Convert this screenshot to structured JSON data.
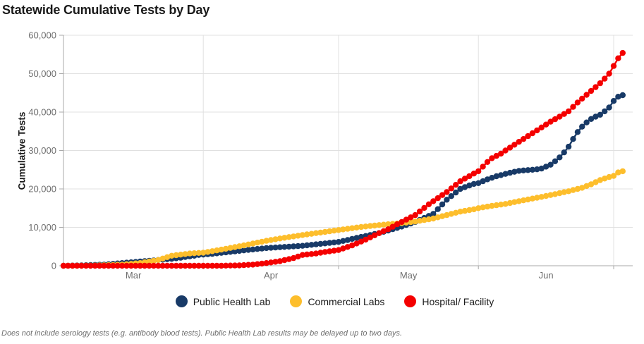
{
  "title": "Statewide Cumulative Tests by Day",
  "footnote": "Does not include serology tests (e.g. antibody blood tests). Public Health Lab results may be delayed up to two days.",
  "colors": {
    "public_health_lab": "#183A67",
    "commercial_labs": "#FDBE2C",
    "hospital_facility": "#F40000",
    "gridline": "#e0e0e0",
    "axis_line": "#a8a8a8",
    "tick_text": "#6e6e6e",
    "title_text": "#1a1a1a"
  },
  "chart_data": {
    "type": "line",
    "title": "Statewide Cumulative Tests by Day",
    "xlabel": "",
    "ylabel": "Cumulative Tests",
    "ylim": [
      0,
      60000
    ],
    "y_ticks": [
      0,
      10000,
      20000,
      30000,
      40000,
      50000,
      60000
    ],
    "grid": "horizontal and vertical month gridlines, light gray",
    "legend_position": "bottom-center",
    "marker": "filled circle per day, connected line",
    "x_unit": "day",
    "x_range": "Mar 1 - Jul 3",
    "x_month_boundaries_days": [
      0,
      31,
      61,
      92,
      122
    ],
    "x_tick_labels": [
      "Mar",
      "Apr",
      "May",
      "Jun"
    ],
    "series": [
      {
        "name": "Public Health Lab",
        "color": "#183A67",
        "values": [
          0,
          25,
          50,
          75,
          100,
          140,
          180,
          220,
          260,
          300,
          400,
          500,
          600,
          700,
          800,
          900,
          1000,
          1100,
          1200,
          1300,
          1400,
          1500,
          1600,
          1700,
          1800,
          1950,
          2100,
          2300,
          2450,
          2600,
          2800,
          2900,
          3000,
          3100,
          3230,
          3360,
          3490,
          3610,
          3740,
          3870,
          4000,
          4120,
          4240,
          4360,
          4480,
          4600,
          4675,
          4750,
          4825,
          4900,
          4975,
          5050,
          5125,
          5200,
          5325,
          5450,
          5575,
          5700,
          5825,
          5950,
          6075,
          6200,
          6450,
          6700,
          7000,
          7250,
          7500,
          7750,
          8000,
          8250,
          8500,
          8840,
          9180,
          9520,
          9860,
          10200,
          10600,
          11000,
          11400,
          11925,
          12450,
          12975,
          13500,
          14730,
          15960,
          17200,
          18130,
          19070,
          20000,
          20450,
          20900,
          21300,
          21500,
          22000,
          22500,
          22900,
          23300,
          23600,
          23900,
          24200,
          24450,
          24700,
          24800,
          24900,
          25000,
          25100,
          25300,
          25800,
          26300,
          27200,
          28200,
          29500,
          31000,
          33000,
          34800,
          36200,
          37300,
          38200,
          38800,
          39300,
          40200,
          41200,
          42900,
          44000,
          44400
        ]
      },
      {
        "name": "Commercial Labs",
        "color": "#FDBE2C",
        "values": [
          0,
          0,
          0,
          10,
          20,
          30,
          40,
          50,
          90,
          130,
          170,
          210,
          250,
          300,
          400,
          500,
          600,
          700,
          900,
          1100,
          1300,
          1500,
          1870,
          2230,
          2600,
          2750,
          2900,
          3050,
          3200,
          3270,
          3340,
          3400,
          3600,
          3800,
          4000,
          4200,
          4420,
          4640,
          4860,
          5080,
          5300,
          5540,
          5780,
          6020,
          6260,
          6500,
          6700,
          6900,
          7100,
          7280,
          7460,
          7640,
          7820,
          8000,
          8160,
          8320,
          8490,
          8650,
          8810,
          8980,
          9140,
          9300,
          9460,
          9620,
          9780,
          9940,
          10100,
          10220,
          10340,
          10460,
          10580,
          10700,
          10800,
          10900,
          11000,
          11100,
          11230,
          11370,
          11500,
          11700,
          11900,
          12100,
          12300,
          12600,
          12900,
          13200,
          13500,
          13800,
          14100,
          14300,
          14500,
          14700,
          15000,
          15200,
          15400,
          15600,
          15770,
          15930,
          16100,
          16330,
          16570,
          16800,
          17030,
          17250,
          17480,
          17700,
          17930,
          18170,
          18400,
          18650,
          18900,
          19150,
          19400,
          19700,
          20000,
          20300,
          20750,
          21200,
          21750,
          22300,
          22700,
          23100,
          23400,
          24300,
          24600
        ]
      },
      {
        "name": "Hospital/ Facility",
        "color": "#F40000",
        "values": [
          0,
          0,
          0,
          0,
          0,
          0,
          0,
          0,
          0,
          0,
          0,
          0,
          0,
          0,
          0,
          0,
          0,
          0,
          0,
          0,
          0,
          0,
          0,
          0,
          0,
          0,
          0,
          0,
          0,
          0,
          0,
          0,
          0,
          0,
          0,
          0,
          30,
          50,
          80,
          100,
          170,
          230,
          300,
          430,
          570,
          700,
          870,
          1030,
          1200,
          1470,
          1730,
          2000,
          2400,
          2800,
          2930,
          3070,
          3200,
          3400,
          3600,
          3770,
          3930,
          4100,
          4500,
          4900,
          5300,
          5800,
          6300,
          6800,
          7370,
          7930,
          8500,
          9000,
          9500,
          10150,
          10800,
          11400,
          12000,
          12600,
          13200,
          14130,
          15070,
          16000,
          16800,
          17600,
          18400,
          19200,
          20130,
          21070,
          22000,
          22670,
          23330,
          24000,
          24600,
          25800,
          27000,
          28000,
          28600,
          29200,
          30000,
          30750,
          31500,
          32250,
          33000,
          33750,
          34500,
          35250,
          36000,
          36750,
          37500,
          38150,
          38800,
          39500,
          40200,
          41350,
          42500,
          43500,
          44500,
          45500,
          46500,
          47500,
          48700,
          50000,
          52000,
          54000,
          55400
        ]
      }
    ]
  }
}
